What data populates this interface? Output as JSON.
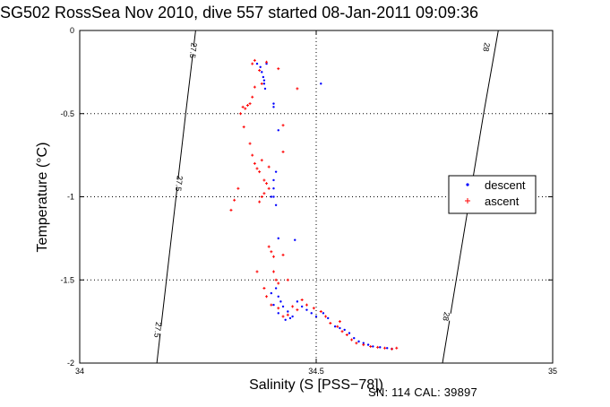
{
  "chart_data": {
    "type": "scatter",
    "title": "SG502 RossSea Nov 2010, dive 557 started 08-Jan-2011 09:09:36",
    "xlabel": "Salinity (S [PSS−78])",
    "ylabel": "Temperature (°C)",
    "xlim": [
      34,
      35
    ],
    "ylim": [
      -2,
      0
    ],
    "x_ticks": [
      34,
      34.5,
      35
    ],
    "y_ticks": [
      0,
      -0.5,
      -1,
      -1.5,
      -2
    ],
    "x_tick_labels": [
      "34",
      "34.5",
      "35"
    ],
    "y_tick_labels": [
      "0",
      "-0.5",
      "-1",
      "-1.5",
      "-2"
    ],
    "grid": "dotted",
    "legend_position": "right",
    "colors": {
      "descent": "#0000ff",
      "ascent": "#ff0000",
      "isopycnal": "#000000"
    },
    "isopycnals": [
      {
        "label": "27.5",
        "points": [
          [
            34.163,
            -2
          ],
          [
            34.224,
            -0.5
          ],
          [
            34.245,
            0
          ]
        ],
        "label_positions": [
          [
            34.21,
            -0.92
          ],
          [
            34.165,
            -1.8
          ],
          [
            34.24,
            -0.12
          ]
        ]
      },
      {
        "label": "28",
        "points": [
          [
            34.767,
            -2
          ],
          [
            34.854,
            -0.5
          ],
          [
            34.885,
            0
          ]
        ],
        "label_positions": [
          [
            34.86,
            -0.1
          ],
          [
            34.775,
            -1.72
          ]
        ]
      }
    ],
    "series": [
      {
        "name": "descent",
        "marker": "dot",
        "points": [
          [
            34.375,
            -0.2
          ],
          [
            34.382,
            -0.22
          ],
          [
            34.385,
            -0.25
          ],
          [
            34.388,
            -0.28
          ],
          [
            34.39,
            -0.32
          ],
          [
            34.392,
            -0.35
          ],
          [
            34.395,
            -0.2
          ],
          [
            34.39,
            -0.3
          ],
          [
            34.41,
            -0.44
          ],
          [
            34.41,
            -0.46
          ],
          [
            34.42,
            -0.6
          ],
          [
            34.415,
            -0.85
          ],
          [
            34.41,
            -0.9
          ],
          [
            34.41,
            -0.95
          ],
          [
            34.41,
            -1.0
          ],
          [
            34.415,
            -1.05
          ],
          [
            34.405,
            -1.0
          ],
          [
            34.42,
            -1.25
          ],
          [
            34.455,
            -1.26
          ],
          [
            34.51,
            -0.32
          ],
          [
            34.415,
            -1.55
          ],
          [
            34.42,
            -1.6
          ],
          [
            34.425,
            -1.63
          ],
          [
            34.43,
            -1.66
          ],
          [
            34.44,
            -1.69
          ],
          [
            34.45,
            -1.72
          ],
          [
            34.46,
            -1.63
          ],
          [
            34.47,
            -1.66
          ],
          [
            34.48,
            -1.68
          ],
          [
            34.49,
            -1.7
          ],
          [
            34.5,
            -1.72
          ],
          [
            34.515,
            -1.7
          ],
          [
            34.525,
            -1.73
          ],
          [
            34.54,
            -1.78
          ],
          [
            34.55,
            -1.79
          ],
          [
            34.56,
            -1.8
          ],
          [
            34.57,
            -1.82
          ],
          [
            34.58,
            -1.85
          ],
          [
            34.59,
            -1.87
          ],
          [
            34.6,
            -1.88
          ],
          [
            34.61,
            -1.89
          ],
          [
            34.62,
            -1.9
          ],
          [
            34.635,
            -1.905
          ],
          [
            34.65,
            -1.91
          ],
          [
            34.66,
            -1.915
          ],
          [
            34.41,
            -1.65
          ],
          [
            34.405,
            -1.58
          ],
          [
            34.42,
            -1.7
          ],
          [
            34.435,
            -1.74
          ],
          [
            34.445,
            -1.73
          ]
        ]
      },
      {
        "name": "ascent",
        "marker": "plus",
        "points": [
          [
            34.365,
            -0.2
          ],
          [
            34.37,
            -0.18
          ],
          [
            34.38,
            -0.24
          ],
          [
            34.385,
            -0.32
          ],
          [
            34.395,
            -0.19
          ],
          [
            34.37,
            -0.34
          ],
          [
            34.365,
            -0.4
          ],
          [
            34.36,
            -0.44
          ],
          [
            34.355,
            -0.45
          ],
          [
            34.35,
            -0.47
          ],
          [
            34.345,
            -0.46
          ],
          [
            34.34,
            -0.5
          ],
          [
            34.347,
            -0.58
          ],
          [
            34.42,
            -0.23
          ],
          [
            34.46,
            -0.35
          ],
          [
            34.43,
            -0.57
          ],
          [
            34.36,
            -0.68
          ],
          [
            34.365,
            -0.75
          ],
          [
            34.37,
            -0.8
          ],
          [
            34.375,
            -0.83
          ],
          [
            34.38,
            -0.85
          ],
          [
            34.385,
            -0.78
          ],
          [
            34.39,
            -0.9
          ],
          [
            34.395,
            -0.92
          ],
          [
            34.4,
            -0.95
          ],
          [
            34.39,
            -0.98
          ],
          [
            34.385,
            -1.0
          ],
          [
            34.38,
            -1.03
          ],
          [
            34.4,
            -0.82
          ],
          [
            34.43,
            -0.73
          ],
          [
            34.32,
            -1.08
          ],
          [
            34.327,
            -1.02
          ],
          [
            34.335,
            -0.95
          ],
          [
            34.4,
            -1.3
          ],
          [
            34.405,
            -1.33
          ],
          [
            34.41,
            -1.36
          ],
          [
            34.41,
            -1.45
          ],
          [
            34.415,
            -1.5
          ],
          [
            34.42,
            -1.52
          ],
          [
            34.43,
            -1.35
          ],
          [
            34.375,
            -1.45
          ],
          [
            34.39,
            -1.55
          ],
          [
            34.395,
            -1.6
          ],
          [
            34.405,
            -1.65
          ],
          [
            34.42,
            -1.67
          ],
          [
            34.43,
            -1.72
          ],
          [
            34.44,
            -1.71
          ],
          [
            34.45,
            -1.66
          ],
          [
            34.46,
            -1.68
          ],
          [
            34.47,
            -1.62
          ],
          [
            34.48,
            -1.65
          ],
          [
            34.495,
            -1.67
          ],
          [
            34.51,
            -1.69
          ],
          [
            34.52,
            -1.72
          ],
          [
            34.53,
            -1.76
          ],
          [
            34.545,
            -1.78
          ],
          [
            34.555,
            -1.81
          ],
          [
            34.565,
            -1.83
          ],
          [
            34.575,
            -1.86
          ],
          [
            34.585,
            -1.88
          ],
          [
            34.6,
            -1.89
          ],
          [
            34.615,
            -1.9
          ],
          [
            34.63,
            -1.905
          ],
          [
            34.645,
            -1.91
          ],
          [
            34.66,
            -1.915
          ],
          [
            34.67,
            -1.91
          ],
          [
            34.55,
            -1.75
          ],
          [
            34.44,
            -1.5
          ]
        ]
      }
    ]
  },
  "footer": {
    "text": "SN: 114  CAL: 39897"
  }
}
